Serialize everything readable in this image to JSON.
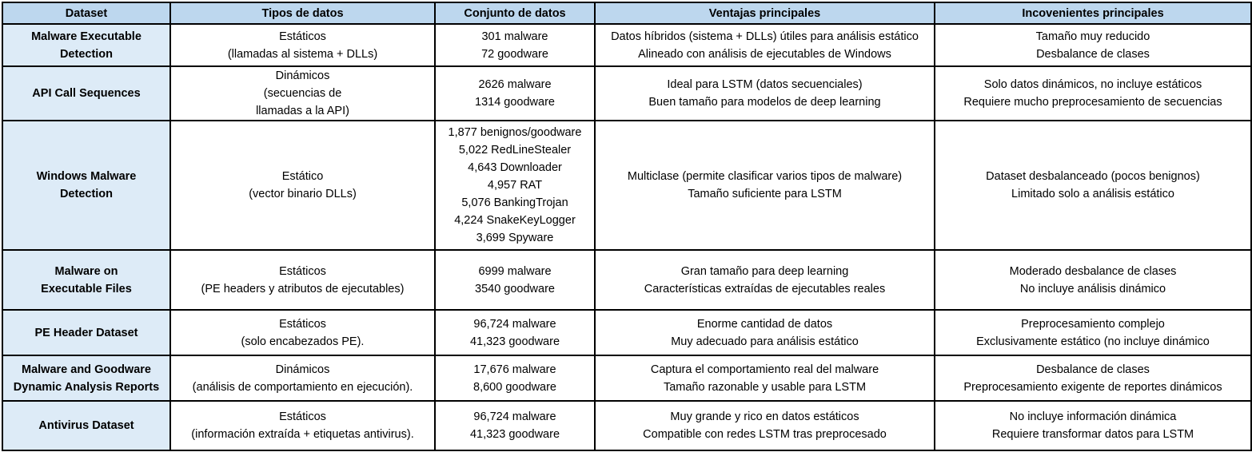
{
  "headers": [
    "Dataset",
    "Tipos de datos",
    "Conjunto de datos",
    "Ventajas principales",
    "Incovenientes principales"
  ],
  "rows": [
    {
      "dataset": [
        "Malware Executable",
        "Detection"
      ],
      "tipos": [
        "Estáticos",
        "(llamadas al sistema + DLLs)"
      ],
      "conjunto": [
        "301 malware",
        "72 goodware"
      ],
      "ventajas": [
        "Datos híbridos (sistema + DLLs) útiles para análisis estático",
        "Alineado con análisis de ejecutables de Windows"
      ],
      "inconvenientes": [
        "Tamaño muy reducido",
        "Desbalance de clases"
      ]
    },
    {
      "dataset": [
        "API Call Sequences"
      ],
      "tipos": [
        "Dinámicos",
        "(secuencias de",
        "llamadas a la API)"
      ],
      "conjunto": [
        "2626 malware",
        "1314 goodware"
      ],
      "ventajas": [
        "Ideal para LSTM (datos secuenciales)",
        "Buen tamaño para modelos de deep learning"
      ],
      "inconvenientes": [
        "Solo datos dinámicos, no incluye estáticos",
        "Requiere mucho preprocesamiento de secuencias"
      ]
    },
    {
      "dataset": [
        "Windows Malware",
        "Detection"
      ],
      "tipos": [
        "Estático",
        "(vector binario DLLs)"
      ],
      "conjunto": [
        "1,877 benignos/goodware",
        "5,022 RedLineStealer",
        "4,643 Downloader",
        "4,957 RAT",
        "5,076 BankingTrojan",
        "4,224 SnakeKeyLogger",
        "3,699 Spyware"
      ],
      "ventajas": [
        "Multiclase (permite clasificar varios tipos de malware)",
        "Tamaño suficiente para LSTM"
      ],
      "inconvenientes": [
        "Dataset desbalanceado (pocos benignos)",
        "Limitado solo a análisis estático"
      ]
    },
    {
      "dataset": [
        "Malware on",
        "Executable Files"
      ],
      "tipos": [
        "Estáticos",
        "(PE headers y atributos de ejecutables)"
      ],
      "conjunto": [
        "6999 malware",
        "3540 goodware"
      ],
      "ventajas": [
        "Gran tamaño para deep learning",
        "Características extraídas de ejecutables reales"
      ],
      "inconvenientes": [
        "Moderado desbalance de clases",
        "No incluye análisis dinámico"
      ]
    },
    {
      "dataset": [
        "PE Header Dataset"
      ],
      "tipos": [
        "Estáticos",
        "(solo encabezados PE)."
      ],
      "conjunto": [
        "96,724 malware",
        "41,323 goodware"
      ],
      "ventajas": [
        "Enorme cantidad de datos",
        "Muy adecuado para análisis estático"
      ],
      "inconvenientes": [
        "Preprocesamiento complejo",
        "Exclusivamente estático (no incluye dinámico"
      ]
    },
    {
      "dataset": [
        "Malware and Goodware",
        "Dynamic Analysis Reports"
      ],
      "tipos": [
        "Dinámicos",
        "(análisis de comportamiento en ejecución)."
      ],
      "conjunto": [
        "17,676 malware",
        "8,600 goodware"
      ],
      "ventajas": [
        "Captura el comportamiento real del malware",
        "Tamaño razonable y usable para LSTM"
      ],
      "inconvenientes": [
        "Desbalance de clases",
        "Preprocesamiento exigente de reportes dinámicos"
      ]
    },
    {
      "dataset": [
        "Antivirus Dataset"
      ],
      "tipos": [
        "Estáticos",
        "(información extraída +  etiquetas antivirus)."
      ],
      "conjunto": [
        "96,724 malware",
        "41,323 goodware"
      ],
      "ventajas": [
        "Muy grande y rico en datos estáticos",
        "Compatible con redes LSTM tras preprocesado"
      ],
      "inconvenientes": [
        "No incluye información dinámica",
        "Requiere transformar datos para LSTM"
      ]
    }
  ]
}
